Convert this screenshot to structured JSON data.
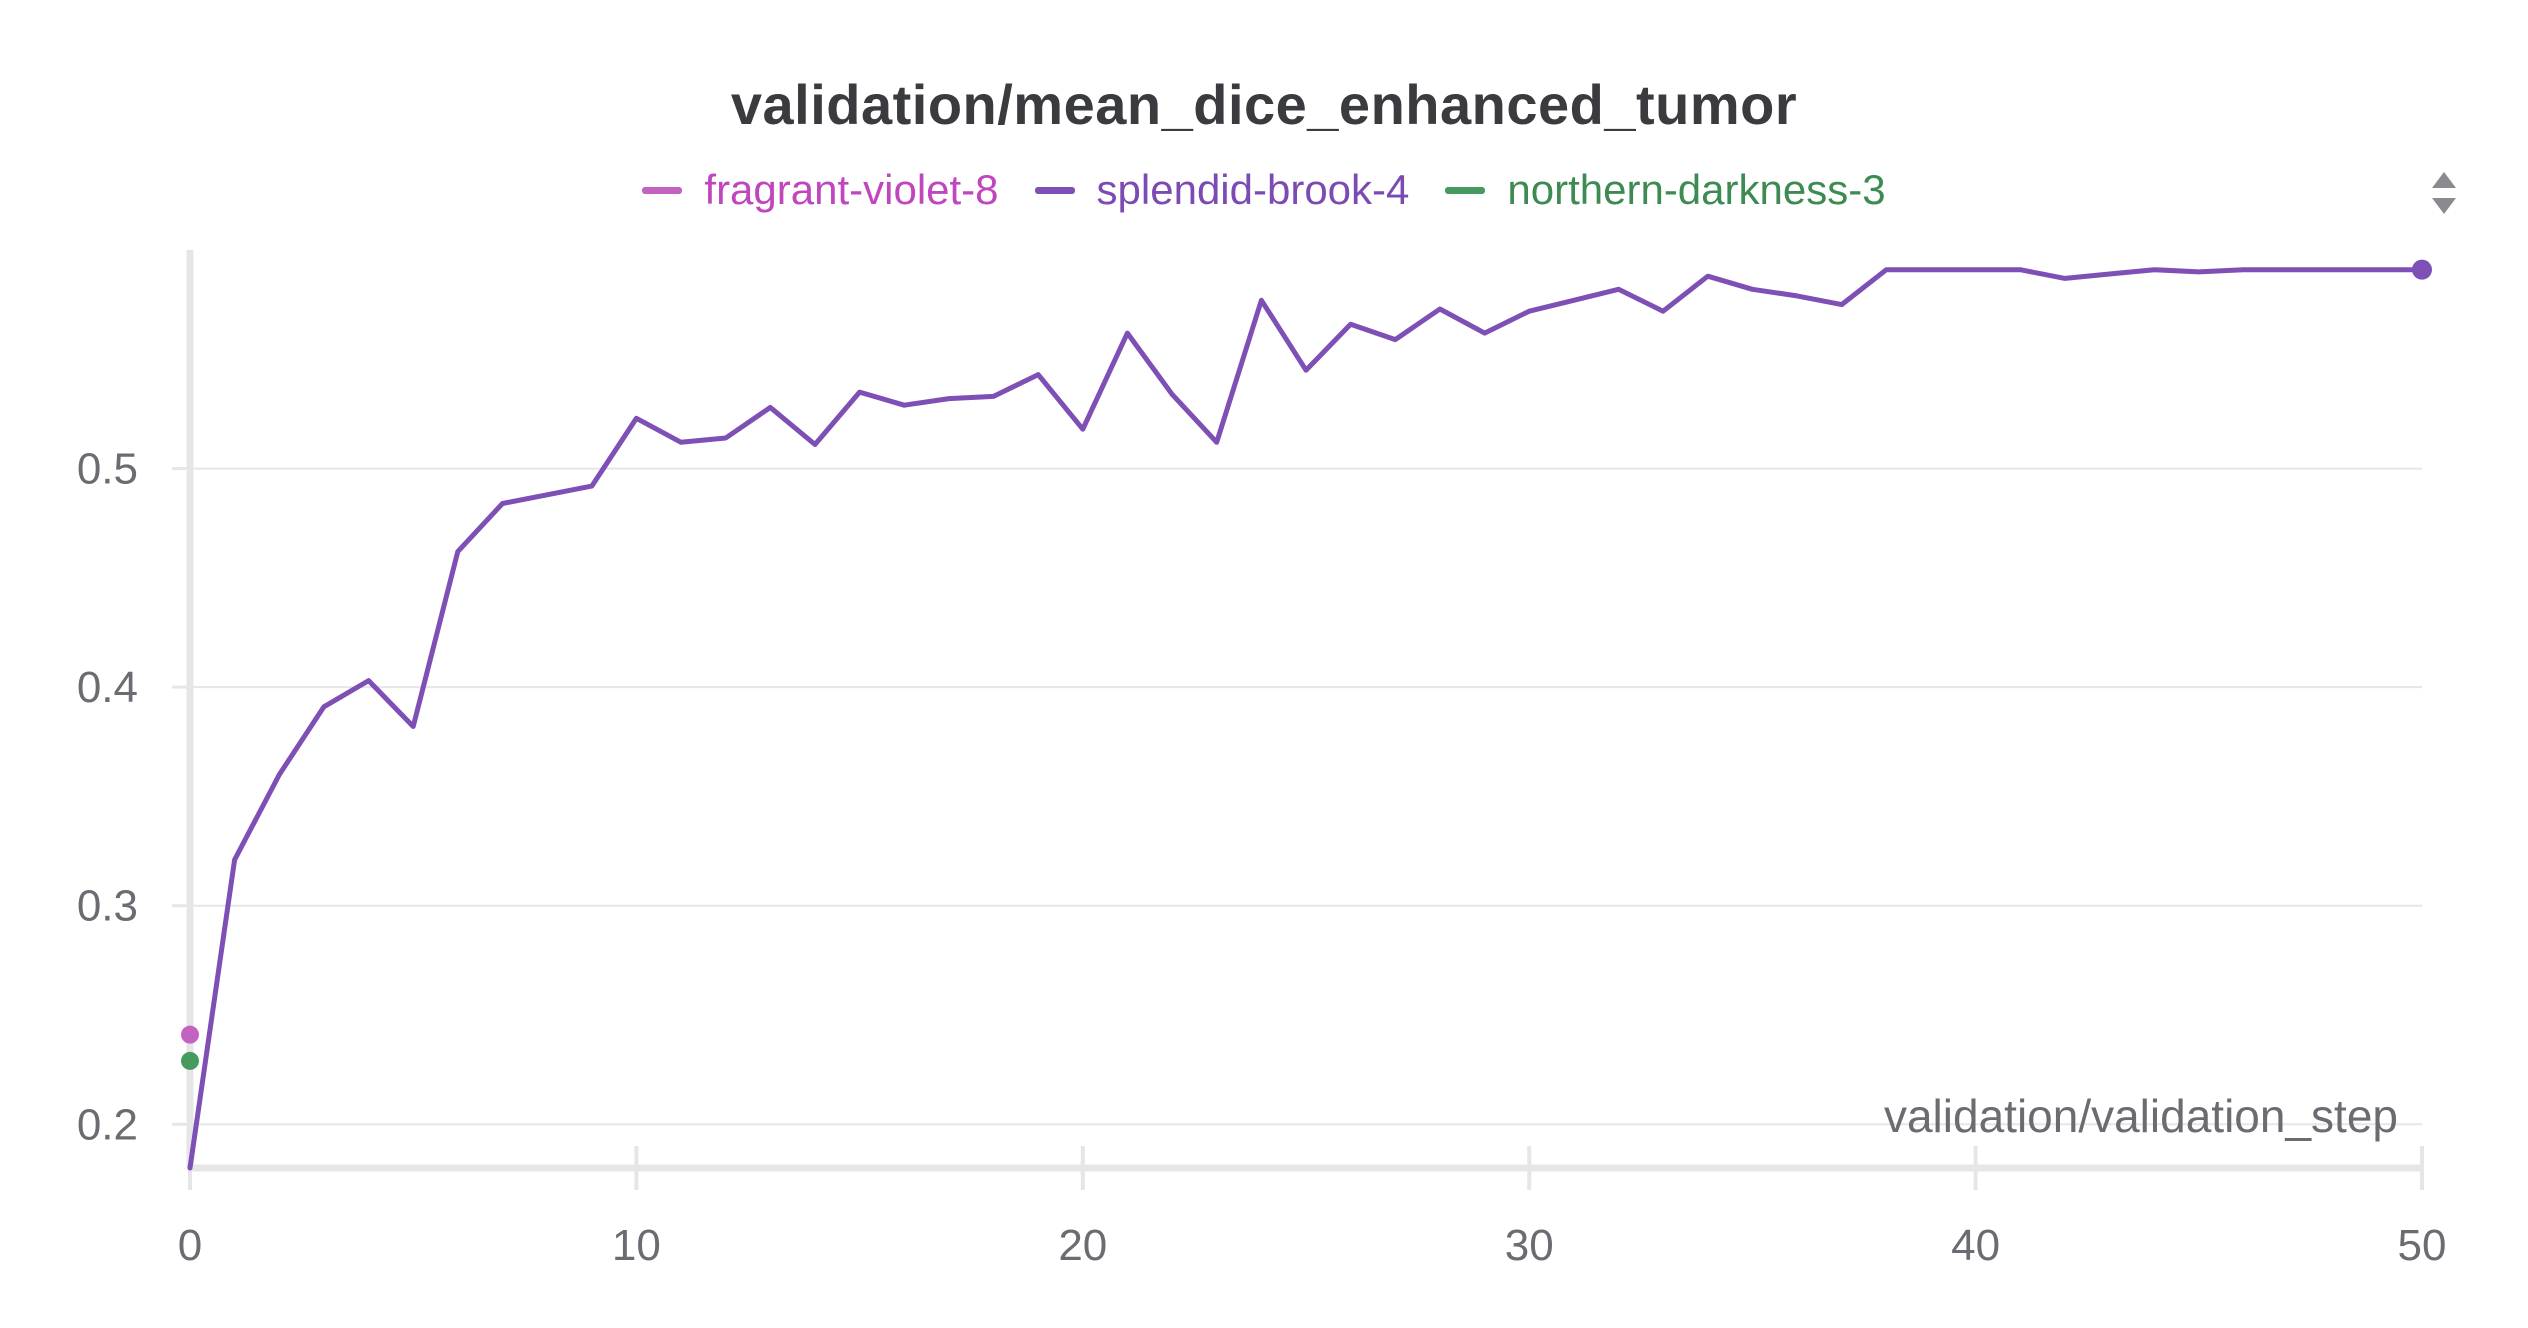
{
  "chart_data": {
    "type": "line",
    "title": "validation/mean_dice_enhanced_tumor",
    "xlabel": "validation/validation_step",
    "ylabel": "",
    "xlim": [
      0,
      50
    ],
    "ylim": [
      0.18,
      0.6
    ],
    "x_ticks": [
      "0",
      "10",
      "20",
      "30",
      "40",
      "50"
    ],
    "y_ticks": [
      "0.2",
      "0.3",
      "0.4",
      "0.5"
    ],
    "grid": true,
    "legend_position": "top-center",
    "series": [
      {
        "name": "fragrant-violet-8",
        "color": "#c363c1",
        "marker_only": true,
        "x": [
          0
        ],
        "y": [
          0.241
        ]
      },
      {
        "name": "splendid-brook-4",
        "color": "#7e4fb4",
        "marker_only": false,
        "x": [
          0,
          1,
          2,
          3,
          4,
          5,
          6,
          7,
          8,
          9,
          10,
          11,
          12,
          13,
          14,
          15,
          16,
          17,
          18,
          19,
          20,
          21,
          22,
          23,
          24,
          25,
          26,
          27,
          28,
          29,
          30,
          31,
          32,
          33,
          34,
          35,
          36,
          37,
          38,
          39,
          40,
          41,
          42,
          43,
          44,
          45,
          46,
          47,
          48,
          49,
          50
        ],
        "y": [
          0.18,
          0.321,
          0.36,
          0.391,
          0.403,
          0.382,
          0.462,
          0.484,
          0.488,
          0.492,
          0.523,
          0.512,
          0.514,
          0.528,
          0.511,
          0.535,
          0.529,
          0.532,
          0.533,
          0.543,
          0.518,
          0.562,
          0.534,
          0.512,
          0.577,
          0.545,
          0.566,
          0.559,
          0.573,
          0.562,
          0.572,
          0.577,
          0.582,
          0.572,
          0.588,
          0.582,
          0.579,
          0.575,
          0.591,
          0.591,
          0.591,
          0.591,
          0.587,
          0.589,
          0.591,
          0.59,
          0.591,
          0.591,
          0.591,
          0.591,
          0.591
        ]
      },
      {
        "name": "northern-darkness-3",
        "color": "#479a5f",
        "marker_only": true,
        "x": [
          0
        ],
        "y": [
          0.229
        ]
      }
    ]
  }
}
